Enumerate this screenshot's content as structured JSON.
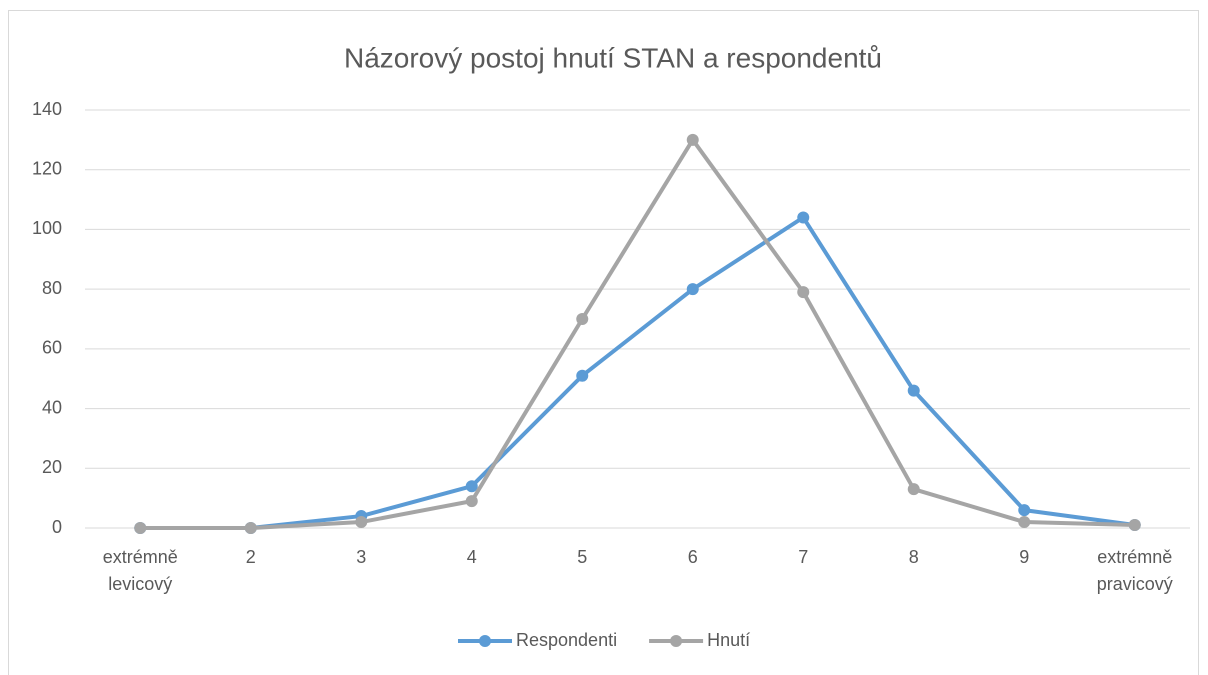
{
  "chart_data": {
    "type": "line",
    "title": "Názorový postoj hnutí STAN a respondentů",
    "categories": [
      "extrémně levicový",
      "2",
      "3",
      "4",
      "5",
      "6",
      "7",
      "8",
      "9",
      "extrémně pravicový"
    ],
    "series": [
      {
        "name": "Respondenti",
        "color": "#5b9bd5",
        "values": [
          0,
          0,
          4,
          14,
          51,
          80,
          104,
          46,
          6,
          1
        ]
      },
      {
        "name": "Hnutí",
        "color": "#a5a5a5",
        "values": [
          0,
          0,
          2,
          9,
          70,
          130,
          79,
          13,
          2,
          1
        ]
      }
    ],
    "ylim": [
      0,
      140
    ],
    "yticks": [
      0,
      20,
      40,
      60,
      80,
      100,
      120,
      140
    ],
    "grid": true,
    "legend": "bottom"
  }
}
